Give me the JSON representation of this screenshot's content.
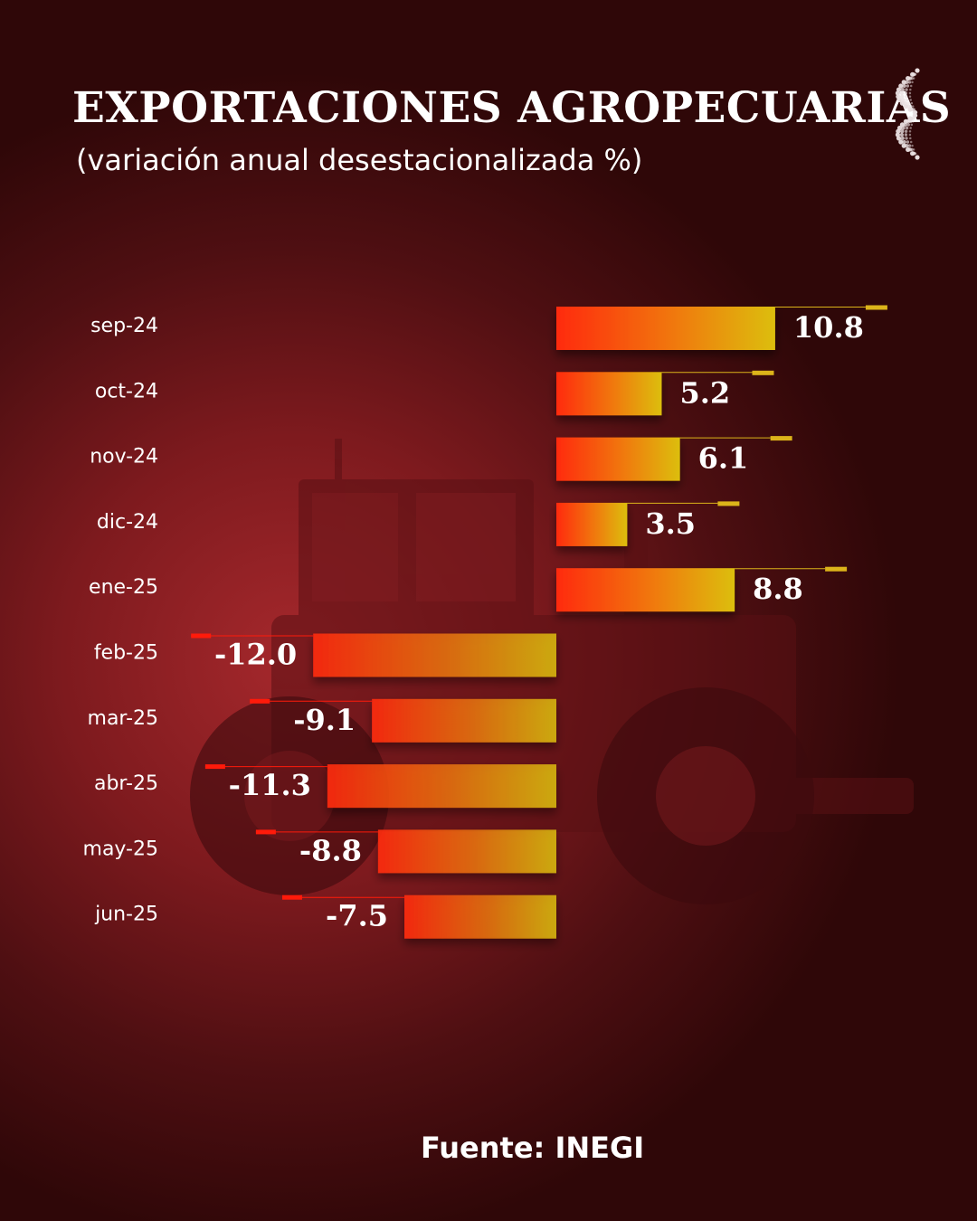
{
  "title": "EXPORTACIONES AGROPECUARIAS",
  "subtitle": "(variación anual desestacionalizada %)",
  "source": "Fuente: INEGI",
  "colors": {
    "background": "#7e1a1e",
    "bar_start": "#ff2a10",
    "bar_end": "#dcbe10",
    "negative_accent": "#ff1a0a",
    "positive_accent": "#dcb41a",
    "text": "#ffffff"
  },
  "chart_data": {
    "type": "bar",
    "orientation": "horizontal",
    "categories": [
      "sep-24",
      "oct-24",
      "nov-24",
      "dic-24",
      "ene-25",
      "feb-25",
      "mar-25",
      "abr-25",
      "may-25",
      "jun-25"
    ],
    "values": [
      10.8,
      5.2,
      6.1,
      3.5,
      8.8,
      -12.0,
      -9.1,
      -11.3,
      -8.8,
      -7.5
    ],
    "labels": [
      "10.8",
      "5.2",
      "6.1",
      "3.5",
      "8.8",
      "-12.0",
      "-9.1",
      "-11.3",
      "-8.8",
      "-7.5"
    ],
    "grid": false
  }
}
